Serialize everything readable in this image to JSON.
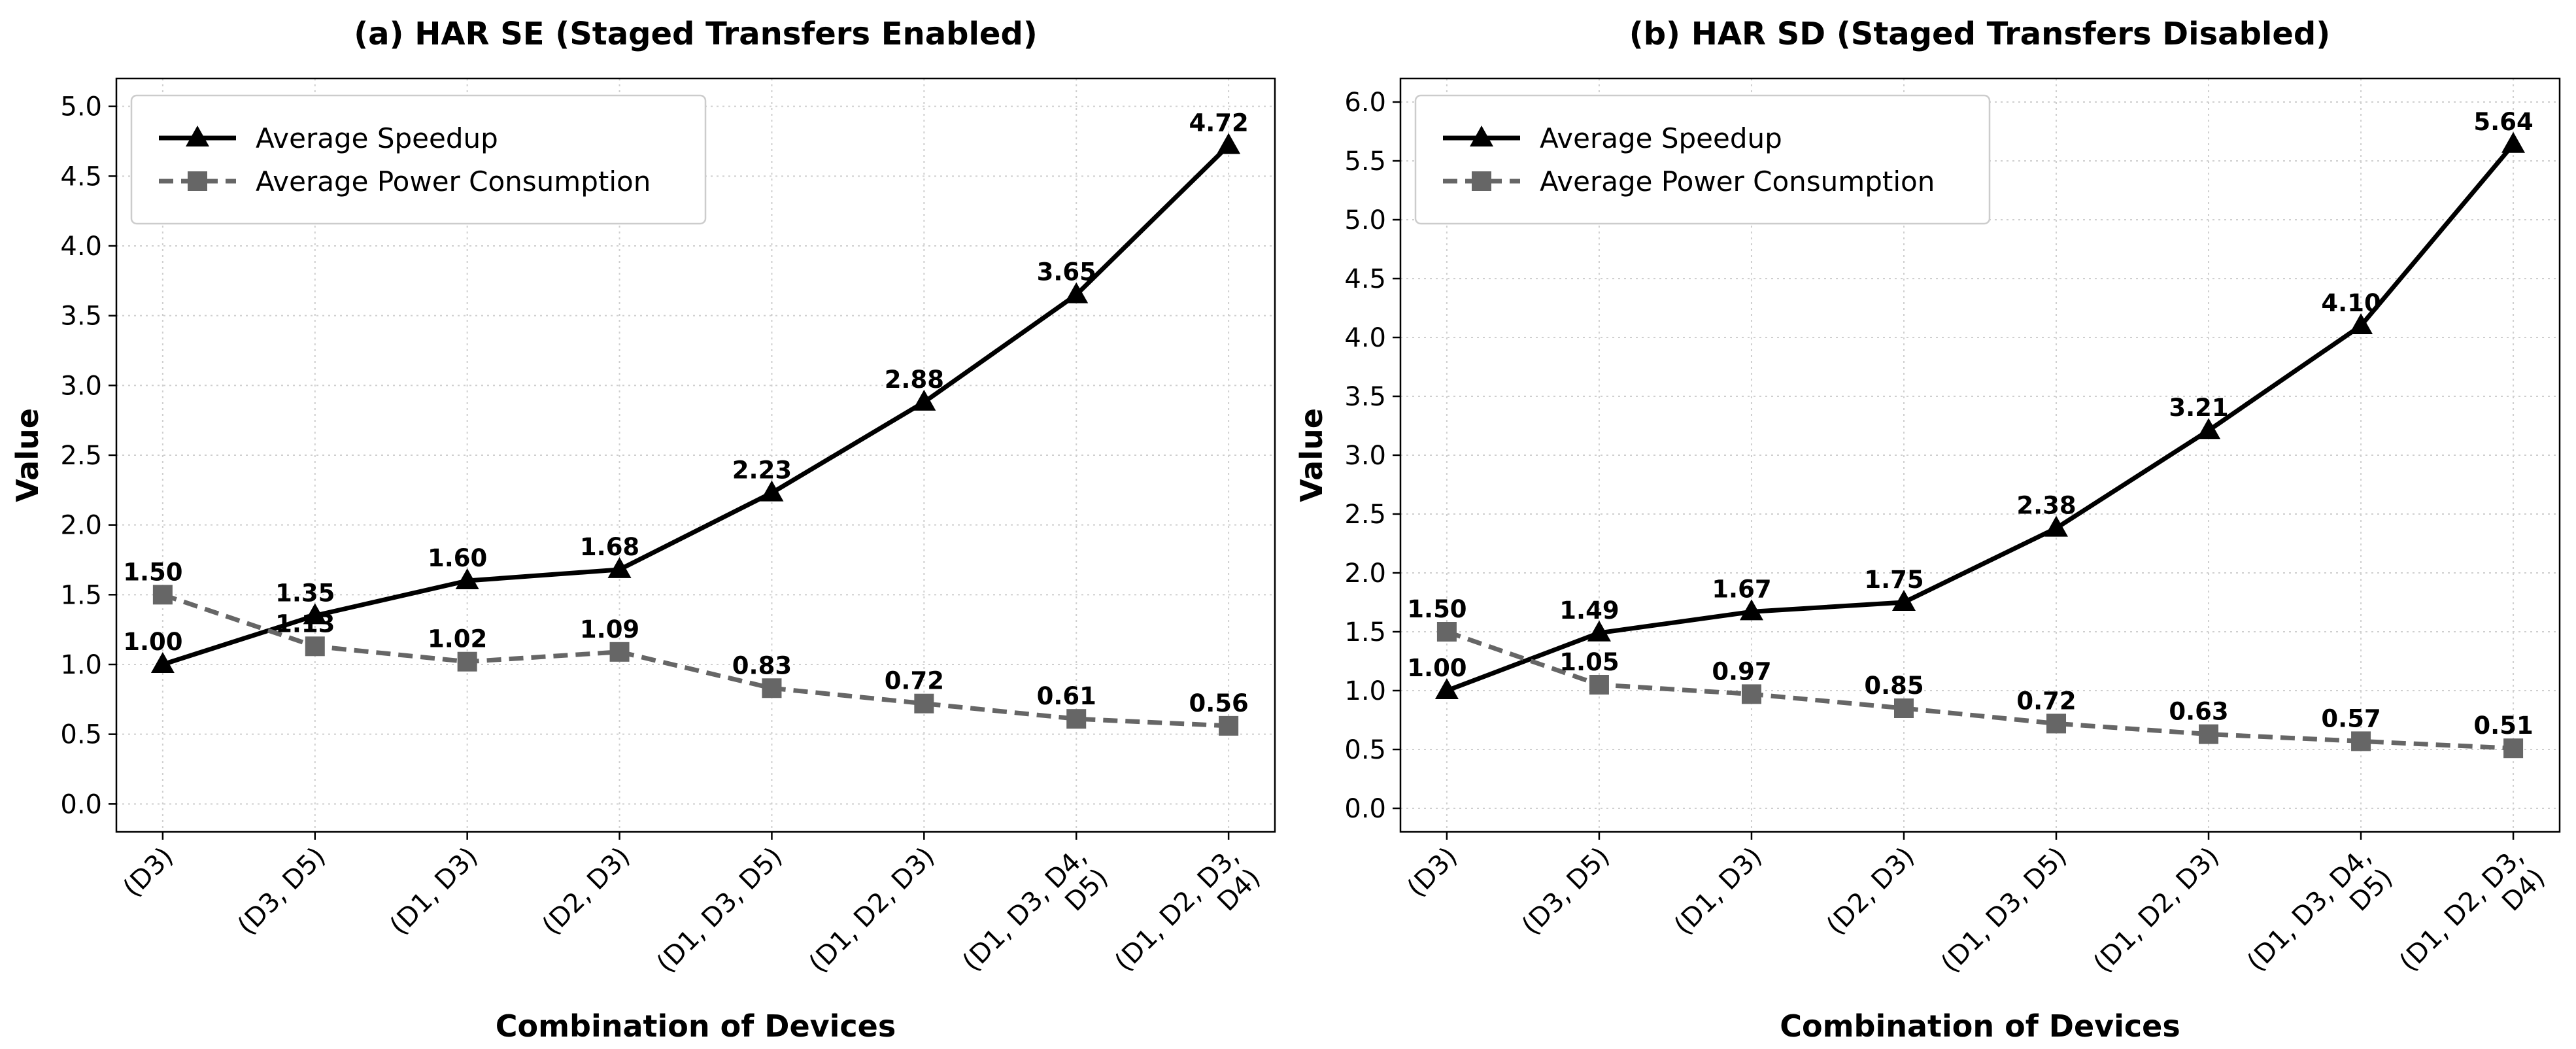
{
  "chart_data": [
    {
      "type": "line",
      "title": "(a) HAR SE (Staged Transfers Enabled)",
      "xlabel": "Combination of Devices",
      "ylabel": "Value",
      "categories": [
        "(D3)",
        "(D3, D5)",
        "(D1, D3)",
        "(D2, D3)",
        "(D1, D3, D5)",
        "(D1, D2, D3)",
        "(D1, D3, D4, D5)",
        "(D1, D2, D3, D4)"
      ],
      "category_lines": [
        [
          "(D3)"
        ],
        [
          "(D3, D5)"
        ],
        [
          "(D1, D3)"
        ],
        [
          "(D2, D3)"
        ],
        [
          "(D1, D3, D5)"
        ],
        [
          "(D1, D2, D3)"
        ],
        [
          "(D1, D3, D4,",
          "D5)"
        ],
        [
          "(D1, D2, D3,",
          "D4)"
        ]
      ],
      "ylim": [
        -0.2,
        5.2
      ],
      "yticks": [
        0.0,
        0.5,
        1.0,
        1.5,
        2.0,
        2.5,
        3.0,
        3.5,
        4.0,
        4.5,
        5.0
      ],
      "ytick_labels": [
        "0.0",
        "0.5",
        "1.0",
        "1.5",
        "2.0",
        "2.5",
        "3.0",
        "3.5",
        "4.0",
        "4.5",
        "5.0"
      ],
      "grid": true,
      "legend_position": "top-left",
      "series": [
        {
          "name": "Average Speedup",
          "values": [
            1.0,
            1.35,
            1.6,
            1.68,
            2.23,
            2.88,
            3.65,
            4.72
          ],
          "labels": [
            "1.00",
            "1.35",
            "1.60",
            "1.68",
            "2.23",
            "2.88",
            "3.65",
            "4.72"
          ],
          "color": "#000000",
          "style": "solid",
          "marker": "triangle"
        },
        {
          "name": "Average Power Consumption",
          "values": [
            1.5,
            1.13,
            1.02,
            1.09,
            0.83,
            0.72,
            0.61,
            0.56
          ],
          "labels": [
            "1.50",
            "1.13",
            "1.02",
            "1.09",
            "0.83",
            "0.72",
            "0.61",
            "0.56"
          ],
          "color": "#666666",
          "style": "dashed",
          "marker": "square"
        }
      ]
    },
    {
      "type": "line",
      "title": "(b) HAR SD (Staged Transfers Disabled)",
      "xlabel": "Combination of Devices",
      "ylabel": "Value",
      "categories": [
        "(D3)",
        "(D3, D5)",
        "(D1, D3)",
        "(D2, D3)",
        "(D1, D3, D5)",
        "(D1, D2, D3)",
        "(D1, D3, D4, D5)",
        "(D1, D2, D3, D4)"
      ],
      "category_lines": [
        [
          "(D3)"
        ],
        [
          "(D3, D5)"
        ],
        [
          "(D1, D3)"
        ],
        [
          "(D2, D3)"
        ],
        [
          "(D1, D3, D5)"
        ],
        [
          "(D1, D2, D3)"
        ],
        [
          "(D1, D3, D4,",
          "D5)"
        ],
        [
          "(D1, D2, D3,",
          "D4)"
        ]
      ],
      "ylim": [
        -0.2,
        6.2
      ],
      "yticks": [
        0.0,
        0.5,
        1.0,
        1.5,
        2.0,
        2.5,
        3.0,
        3.5,
        4.0,
        4.5,
        5.0,
        5.5,
        6.0
      ],
      "ytick_labels": [
        "0.0",
        "0.5",
        "1.0",
        "1.5",
        "2.0",
        "2.5",
        "3.0",
        "3.5",
        "4.0",
        "4.5",
        "5.0",
        "5.5",
        "6.0"
      ],
      "grid": true,
      "legend_position": "top-left",
      "series": [
        {
          "name": "Average Speedup",
          "values": [
            1.0,
            1.49,
            1.67,
            1.75,
            2.38,
            3.21,
            4.1,
            5.64
          ],
          "labels": [
            "1.00",
            "1.49",
            "1.67",
            "1.75",
            "2.38",
            "3.21",
            "4.10",
            "5.64"
          ],
          "color": "#000000",
          "style": "solid",
          "marker": "triangle"
        },
        {
          "name": "Average Power Consumption",
          "values": [
            1.5,
            1.05,
            0.97,
            0.85,
            0.72,
            0.63,
            0.57,
            0.51
          ],
          "labels": [
            "1.50",
            "1.05",
            "0.97",
            "0.85",
            "0.72",
            "0.63",
            "0.57",
            "0.51"
          ],
          "color": "#666666",
          "style": "dashed",
          "marker": "square"
        }
      ]
    }
  ]
}
